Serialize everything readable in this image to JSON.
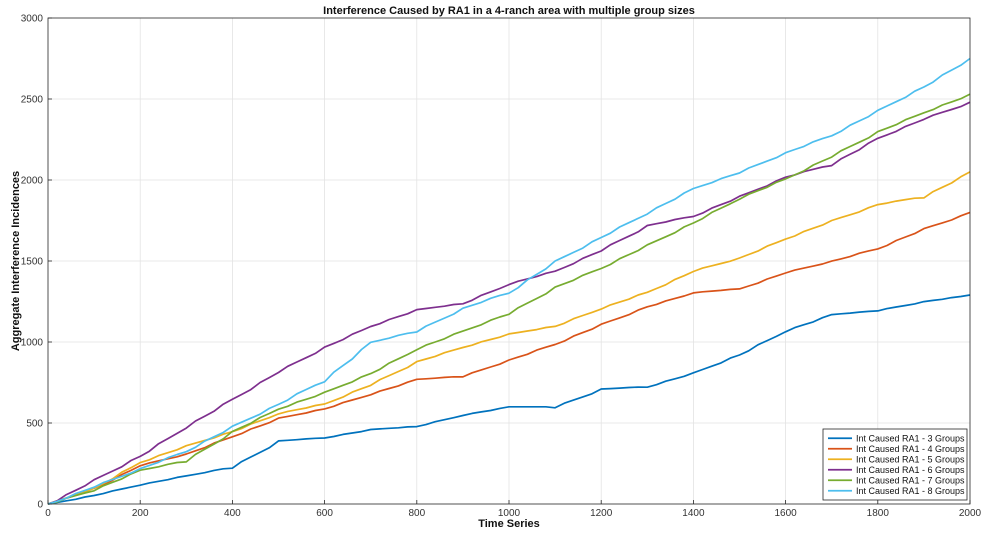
{
  "chart_data": {
    "type": "line",
    "title": "Interference Caused by RA1 in a 4-ranch area with multiple group sizes",
    "xlabel": "Time Series",
    "ylabel": "Aggregate Interference Incidences",
    "xlim": [
      0,
      2000
    ],
    "ylim": [
      0,
      3000
    ],
    "x_ticks": [
      0,
      200,
      400,
      600,
      800,
      1000,
      1200,
      1400,
      1600,
      1800,
      2000
    ],
    "y_ticks": [
      0,
      500,
      1000,
      1500,
      2000,
      2500,
      3000
    ],
    "grid": true,
    "legend_position": "bottom-right",
    "x": [
      0,
      100,
      200,
      300,
      400,
      500,
      600,
      700,
      800,
      900,
      1000,
      1100,
      1200,
      1300,
      1400,
      1500,
      1600,
      1700,
      1800,
      1900,
      2000
    ],
    "series": [
      {
        "name": "Int Caused RA1 - 3 Groups",
        "color": "#0072BD",
        "values": [
          0,
          55,
          120,
          175,
          230,
          390,
          410,
          460,
          480,
          550,
          600,
          600,
          710,
          725,
          810,
          925,
          1070,
          1170,
          1195,
          1250,
          1290
        ]
      },
      {
        "name": "Int Caused RA1 - 4 Groups",
        "color": "#D95319",
        "values": [
          0,
          100,
          240,
          310,
          420,
          530,
          590,
          680,
          770,
          790,
          890,
          990,
          1110,
          1220,
          1305,
          1330,
          1430,
          1500,
          1580,
          1700,
          1800
        ]
      },
      {
        "name": "Int Caused RA1 - 5 Groups",
        "color": "#EDB120",
        "values": [
          0,
          100,
          260,
          360,
          450,
          560,
          620,
          740,
          880,
          970,
          1050,
          1100,
          1210,
          1310,
          1440,
          1520,
          1640,
          1750,
          1850,
          1900,
          2050
        ]
      },
      {
        "name": "Int Caused RA1 - 6 Groups",
        "color": "#7E2F8E",
        "values": [
          0,
          150,
          300,
          480,
          650,
          820,
          970,
          1100,
          1200,
          1240,
          1360,
          1440,
          1570,
          1720,
          1780,
          1900,
          2020,
          2100,
          2260,
          2380,
          2480
        ]
      },
      {
        "name": "Int Caused RA1 - 7 Groups",
        "color": "#77AC30",
        "values": [
          0,
          90,
          210,
          270,
          450,
          590,
          690,
          810,
          960,
          1070,
          1180,
          1340,
          1460,
          1600,
          1740,
          1890,
          2010,
          2150,
          2300,
          2420,
          2530
        ]
      },
      {
        "name": "Int Caused RA1 - 8 Groups",
        "color": "#4DBEEE",
        "values": [
          0,
          110,
          220,
          330,
          480,
          620,
          770,
          1000,
          1070,
          1210,
          1310,
          1500,
          1650,
          1800,
          1950,
          2050,
          2170,
          2280,
          2430,
          2580,
          2750
        ]
      }
    ]
  }
}
